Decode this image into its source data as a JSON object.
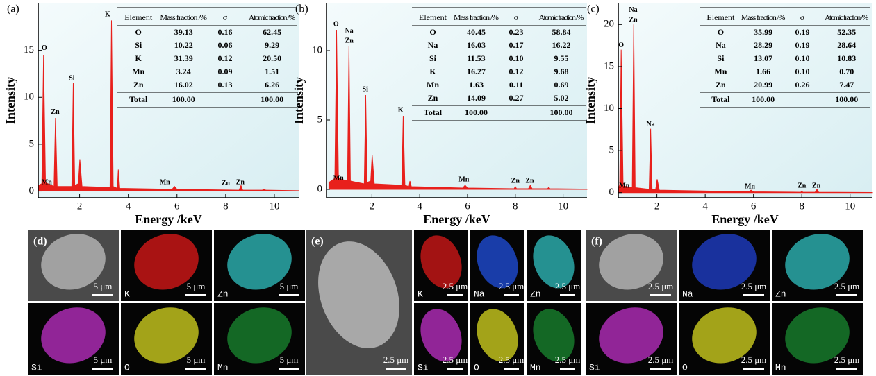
{
  "chart_data": [
    {
      "type": "spectrum",
      "label": "(a)",
      "x_label": "Energy /keV",
      "y_label": "Intensity",
      "color": "#e8201c",
      "xlim": [
        0.3,
        11
      ],
      "ylim": [
        -0.7,
        20
      ],
      "xticks": [
        2,
        4,
        6,
        8,
        10
      ],
      "yticks": [
        0,
        5,
        10,
        15
      ],
      "x": [
        0.3,
        0.45,
        0.52,
        0.6,
        0.95,
        1.01,
        1.08,
        1.68,
        1.74,
        1.8,
        1.95,
        2.01,
        2.1,
        3.25,
        3.31,
        3.38,
        3.55,
        3.59,
        3.65,
        5.8,
        5.9,
        6.0,
        8.55,
        8.63,
        8.7,
        9.5,
        9.57,
        9.65,
        11
      ],
      "values": [
        0.6,
        0.8,
        14.5,
        0.9,
        0.5,
        7.8,
        0.5,
        0.5,
        11.5,
        0.6,
        0.8,
        3.4,
        0.5,
        0.4,
        18.2,
        0.5,
        0.3,
        2.3,
        0.3,
        0.2,
        0.5,
        0.2,
        0.1,
        0.6,
        0.1,
        0.1,
        0.2,
        0.1,
        0.05
      ],
      "annotations": [
        {
          "text": "O",
          "x": 0.55,
          "y": 15.2
        },
        {
          "text": "Zn",
          "x": 1.0,
          "y": 8.4
        },
        {
          "text": "Si",
          "x": 1.68,
          "y": 12.0
        },
        {
          "text": "K",
          "x": 3.15,
          "y": 18.8
        },
        {
          "text": "Mn",
          "x": 0.65,
          "y": 0.9
        },
        {
          "text": "Mn",
          "x": 5.5,
          "y": 0.9
        },
        {
          "text": "Zn",
          "x": 8.0,
          "y": 0.8
        },
        {
          "text": "Zn",
          "x": 8.6,
          "y": 0.9
        }
      ],
      "table": {
        "header": [
          "Element",
          "Mass fraction /%",
          "σ",
          "Atomic fraction /%"
        ],
        "rows": [
          [
            "O",
            "39.13",
            "0.16",
            "62.45"
          ],
          [
            "Si",
            "10.22",
            "0.06",
            "9.29"
          ],
          [
            "K",
            "31.39",
            "0.12",
            "20.50"
          ],
          [
            "Mn",
            "3.24",
            "0.09",
            "1.51"
          ],
          [
            "Zn",
            "16.02",
            "0.13",
            "6.26"
          ]
        ],
        "total": [
          "Total",
          "100.00",
          null,
          "100.00"
        ]
      }
    },
    {
      "type": "spectrum",
      "label": "(b)",
      "x_label": "Energy /keV",
      "y_label": "Intensity",
      "color": "#e8201c",
      "xlim": [
        0.1,
        11
      ],
      "ylim": [
        -0.6,
        13.4
      ],
      "xticks": [
        2,
        4,
        6,
        8,
        10
      ],
      "yticks": [
        0,
        5,
        10
      ],
      "x": [
        0.2,
        0.45,
        0.52,
        0.6,
        0.98,
        1.04,
        1.1,
        1.68,
        1.74,
        1.8,
        1.95,
        2.01,
        2.1,
        3.25,
        3.31,
        3.38,
        3.55,
        3.59,
        3.65,
        5.8,
        5.9,
        6.0,
        7.95,
        8.0,
        8.05,
        8.55,
        8.63,
        8.7,
        9.35,
        9.4,
        9.45,
        11
      ],
      "values": [
        0.5,
        0.8,
        11.5,
        0.8,
        0.6,
        10.3,
        0.6,
        0.4,
        6.8,
        0.5,
        0.6,
        2.5,
        0.4,
        0.3,
        5.3,
        0.3,
        0.2,
        0.6,
        0.2,
        0.1,
        0.3,
        0.1,
        0.05,
        0.2,
        0.05,
        0.05,
        0.3,
        0.05,
        0.05,
        0.15,
        0.05,
        0.02
      ],
      "annotations": [
        {
          "text": "O",
          "x": 0.5,
          "y": 11.9
        },
        {
          "text": "Na",
          "x": 1.05,
          "y": 11.4
        },
        {
          "text": "Zn",
          "x": 1.05,
          "y": 10.7
        },
        {
          "text": "Si",
          "x": 1.72,
          "y": 7.2
        },
        {
          "text": "K",
          "x": 3.2,
          "y": 5.7
        },
        {
          "text": "Mn",
          "x": 0.6,
          "y": 0.8
        },
        {
          "text": "Mn",
          "x": 5.85,
          "y": 0.7
        },
        {
          "text": "Zn",
          "x": 8.0,
          "y": 0.6
        },
        {
          "text": "Zn",
          "x": 8.6,
          "y": 0.6
        }
      ],
      "table": {
        "header": [
          "Element",
          "Mass fraction /%",
          "σ",
          "Atomic fraction /%"
        ],
        "rows": [
          [
            "O",
            "40.45",
            "0.23",
            "58.84"
          ],
          [
            "Na",
            "16.03",
            "0.17",
            "16.22"
          ],
          [
            "Si",
            "11.53",
            "0.10",
            "9.55"
          ],
          [
            "K",
            "16.27",
            "0.12",
            "9.68"
          ],
          [
            "Mn",
            "1.63",
            "0.11",
            "0.69"
          ],
          [
            "Zn",
            "14.09",
            "0.27",
            "5.02"
          ]
        ],
        "total": [
          "Total",
          "100.00",
          null,
          "100.00"
        ]
      }
    },
    {
      "type": "spectrum",
      "label": "(c)",
      "x_label": "Energy /keV",
      "y_label": "Intensity",
      "color": "#e8201c",
      "xlim": [
        0.4,
        10.9
      ],
      "ylim": [
        -0.6,
        22.5
      ],
      "xticks": [
        2,
        4,
        6,
        8,
        10
      ],
      "yticks": [
        0,
        5,
        10,
        15,
        20
      ],
      "x": [
        0.4,
        0.46,
        0.52,
        0.6,
        0.98,
        1.04,
        1.1,
        1.68,
        1.74,
        1.8,
        1.95,
        2.01,
        2.1,
        5.8,
        5.9,
        6.0,
        7.95,
        8.0,
        8.05,
        8.55,
        8.63,
        8.7,
        10.9
      ],
      "values": [
        0.6,
        0.9,
        17.0,
        0.8,
        0.6,
        20.0,
        0.6,
        0.4,
        7.6,
        0.4,
        0.4,
        1.6,
        0.3,
        0.1,
        0.3,
        0.1,
        0.05,
        0.15,
        0.05,
        0.05,
        0.4,
        0.05,
        0.02
      ],
      "annotations": [
        {
          "text": "O",
          "x": 0.52,
          "y": 17.5
        },
        {
          "text": "Na",
          "x": 1.02,
          "y": 21.7
        },
        {
          "text": "Zn",
          "x": 1.02,
          "y": 20.5
        },
        {
          "text": "Na",
          "x": 1.74,
          "y": 8.1
        },
        {
          "text": "Mn",
          "x": 0.65,
          "y": 0.8
        },
        {
          "text": "Mn",
          "x": 5.85,
          "y": 0.7
        },
        {
          "text": "Zn",
          "x": 8.0,
          "y": 0.8
        },
        {
          "text": "Zn",
          "x": 8.6,
          "y": 0.8
        }
      ],
      "table": {
        "header": [
          "Element",
          "Mass fraction /%",
          "σ",
          "Atomic fraction /%"
        ],
        "rows": [
          [
            "O",
            "35.99",
            "0.19",
            "52.35"
          ],
          [
            "Na",
            "28.29",
            "0.19",
            "28.64"
          ],
          [
            "Si",
            "13.07",
            "0.10",
            "10.83"
          ],
          [
            "Mn",
            "1.66",
            "0.10",
            "0.70"
          ],
          [
            "Zn",
            "20.99",
            "0.26",
            "7.47"
          ]
        ],
        "total": [
          "Total",
          "100.00",
          null,
          "100.00"
        ]
      }
    }
  ],
  "micrographs": [
    {
      "label": "(d)",
      "tiles": [
        {
          "scale": "5 μm",
          "color": "#b0b0b0"
        },
        {
          "element": "K",
          "scale": "5 μm",
          "color": "#e01818"
        },
        {
          "element": "Zn",
          "scale": "5 μm",
          "color": "#30c0c0"
        },
        {
          "element": "Si",
          "scale": "5 μm",
          "color": "#c030c8"
        },
        {
          "element": "O",
          "scale": "5 μm",
          "color": "#d8d820"
        },
        {
          "element": "Mn",
          "scale": "5 μm",
          "color": "#1a8a30"
        }
      ]
    },
    {
      "label": "(e)",
      "tiles": [
        {
          "scale": "2.5 μm",
          "color": "#b8b8b8"
        },
        {
          "element": "K",
          "scale": "2.5 μm",
          "color": "#d81818"
        },
        {
          "element": "Na",
          "scale": "2.5 μm",
          "color": "#2050e0"
        },
        {
          "element": "Zn",
          "scale": "2.5 μm",
          "color": "#30c0c0"
        },
        {
          "element": "Si",
          "scale": "2.5 μm",
          "color": "#c030c8"
        },
        {
          "element": "O",
          "scale": "2.5 μm",
          "color": "#d8d820"
        },
        {
          "element": "Mn",
          "scale": "2.5 μm",
          "color": "#1a8a30"
        }
      ]
    },
    {
      "label": "(f)",
      "tiles": [
        {
          "scale": "2.5 μm",
          "color": "#b0b0b0"
        },
        {
          "element": "Na",
          "scale": "2.5 μm",
          "color": "#2040d0"
        },
        {
          "element": "Zn",
          "scale": "2.5 μm",
          "color": "#30c0c0"
        },
        {
          "element": "Si",
          "scale": "2.5 μm",
          "color": "#c030c8"
        },
        {
          "element": "O",
          "scale": "2.5 μm",
          "color": "#d8d820"
        },
        {
          "element": "Mn",
          "scale": "2.5 μm",
          "color": "#1a8a30"
        }
      ]
    }
  ]
}
